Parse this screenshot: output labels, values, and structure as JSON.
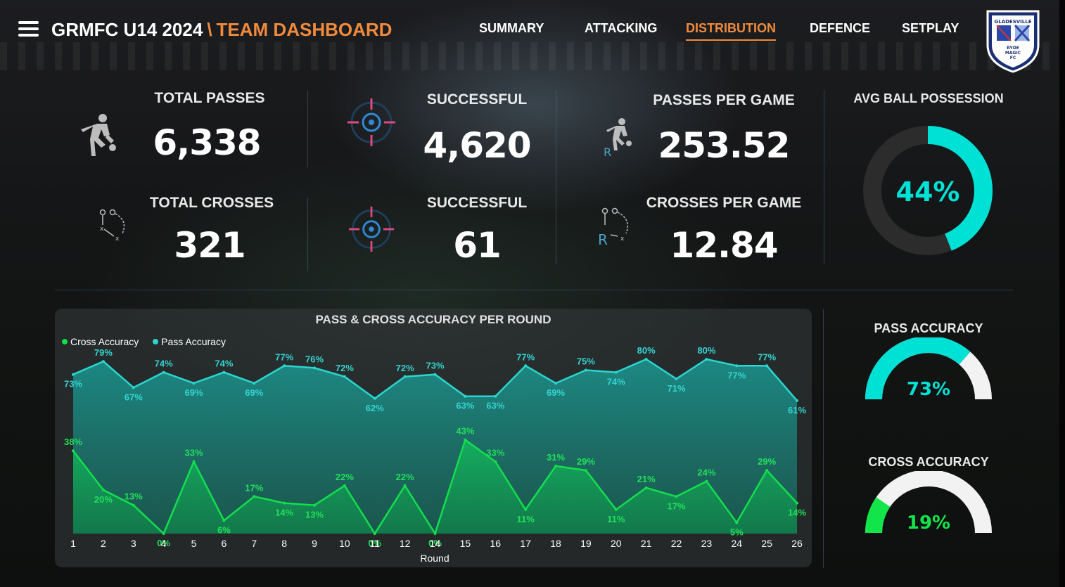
{
  "header": {
    "title": "GRMFC U14 2024",
    "separator": "\\",
    "subtitle": "TEAM DASHBOARD",
    "nav": [
      "SUMMARY",
      "ATTACKING",
      "DISTRIBUTION",
      "DEFENCE",
      "SETPLAY"
    ],
    "active_nav": "DISTRIBUTION",
    "logo_text": [
      "GLADESVILLE",
      "RYDE",
      "MAGIC",
      "FC"
    ]
  },
  "kpis": {
    "total_passes": {
      "label": "TOTAL PASSES",
      "value": "6,338"
    },
    "successful_passes": {
      "label": "SUCCESSFUL",
      "value": "4,620"
    },
    "passes_per_game": {
      "label": "PASSES PER GAME",
      "value": "253.52"
    },
    "total_crosses": {
      "label": "TOTAL CROSSES",
      "value": "321"
    },
    "successful_crosses": {
      "label": "SUCCESSFUL",
      "value": "61"
    },
    "crosses_per_game": {
      "label": "CROSSES PER GAME",
      "value": "12.84"
    }
  },
  "possession": {
    "label": "AVG BALL POSSESSION",
    "value": "44%",
    "fraction": 0.44,
    "color": "#00e1d6"
  },
  "pass_accuracy": {
    "label": "PASS ACCURACY",
    "value": "73%",
    "fraction": 0.73,
    "color": "#00e1d6"
  },
  "cross_accuracy": {
    "label": "CROSS ACCURACY",
    "value": "19%",
    "fraction": 0.19,
    "color": "#11e54a"
  },
  "colors": {
    "accent": "#f08a3c",
    "pass": "#2ad6cf",
    "cross": "#13df4d"
  },
  "chart_data": {
    "type": "area",
    "title": "PASS & CROSS ACCURACY PER ROUND",
    "xlabel": "Round",
    "ylabel": "",
    "categories": [
      "1",
      "2",
      "3",
      "4",
      "5",
      "6",
      "7",
      "8",
      "9",
      "10",
      "11",
      "12",
      "14",
      "15",
      "16",
      "17",
      "18",
      "19",
      "20",
      "21",
      "22",
      "23",
      "24",
      "25",
      "26"
    ],
    "legend_position": "top-left",
    "series": [
      {
        "name": "Cross Accuracy",
        "values": [
          38,
          20,
          13,
          0,
          33,
          6,
          17,
          14,
          13,
          22,
          0,
          22,
          0,
          43,
          33,
          11,
          31,
          29,
          11,
          21,
          17,
          24,
          5,
          29,
          14
        ],
        "labels": [
          "38%",
          "20%",
          "13%",
          "0%",
          "33%",
          "6%",
          "17%",
          "14%",
          "13%",
          "22%",
          "0%",
          "22%",
          "0%",
          "43%",
          "33%",
          "11%",
          "31%",
          "29%",
          "11%",
          "21%",
          "17%",
          "24%",
          "5%",
          "29%",
          "14%"
        ]
      },
      {
        "name": "Pass Accuracy",
        "values": [
          73,
          79,
          67,
          74,
          69,
          74,
          69,
          77,
          76,
          72,
          62,
          72,
          73,
          63,
          63,
          77,
          69,
          75,
          74,
          80,
          71,
          80,
          77,
          77,
          61
        ],
        "labels": [
          "73%",
          "79%",
          "67%",
          "74%",
          "69%",
          "74%",
          "69%",
          "77%",
          "76%",
          "72%",
          "62%",
          "72%",
          "73%",
          "63%",
          "63%",
          "77%",
          "69%",
          "75%",
          "74%",
          "80%",
          "71%",
          "80%",
          "77%",
          "77%",
          "61%"
        ]
      }
    ],
    "ylim": [
      0,
      100
    ]
  }
}
